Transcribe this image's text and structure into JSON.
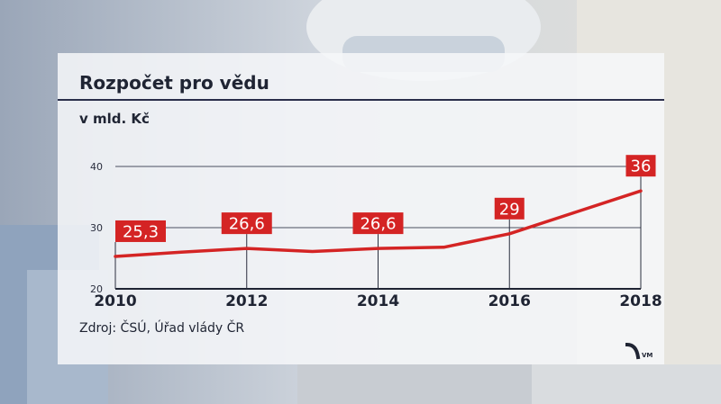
{
  "chart_data": {
    "type": "line",
    "title": "Rozpočet pro vědu",
    "unit_label": "v mld. Kč",
    "source": "Zdroj: ČSÚ, Úřad vlády ČR",
    "x": [
      2010,
      2011,
      2012,
      2013,
      2014,
      2015,
      2016,
      2017,
      2018
    ],
    "values": [
      25.3,
      26.0,
      26.6,
      26.1,
      26.6,
      26.8,
      29.0,
      32.5,
      36.0
    ],
    "x_tick_labels": [
      "2010",
      "2012",
      "2014",
      "2016",
      "2018"
    ],
    "y_ticks": [
      20,
      30,
      40
    ],
    "y_tick_labels": [
      "20",
      "30",
      "40"
    ],
    "ylim": [
      20,
      40
    ],
    "xlim": [
      2010,
      2018
    ],
    "data_labels": [
      {
        "x": 2010,
        "text": "25,3"
      },
      {
        "x": 2012,
        "text": "26,6"
      },
      {
        "x": 2014,
        "text": "26,6"
      },
      {
        "x": 2016,
        "text": "29"
      },
      {
        "x": 2018,
        "text": "36"
      }
    ],
    "grid": true,
    "colors": {
      "line": "#d42424",
      "label_bg": "#d42424",
      "text": "#1f2433",
      "rule": "#2a2e4a"
    }
  }
}
